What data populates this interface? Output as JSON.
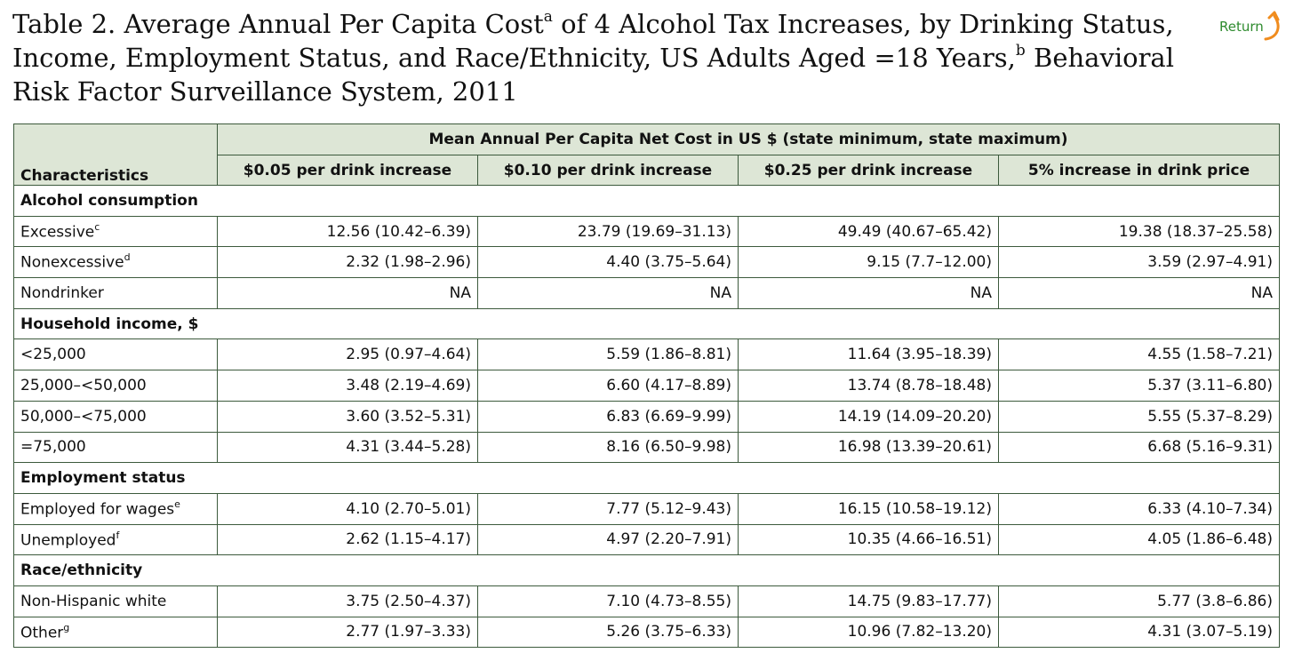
{
  "title": {
    "text_1": "Table 2. Average Annual Per Capita Cost",
    "sup_1": "a",
    "text_2": " of 4 Alcohol Tax Increases, by Drinking Status, Income, Employment Status, and Race/Ethnicity, US Adults Aged =18 Years,",
    "sup_2": "b",
    "text_3": " Behavioral Risk Factor Surveillance System, 2011"
  },
  "return_link": {
    "label": "Return",
    "icon": "curved-arrow-icon",
    "color": "#f08c1e"
  },
  "colors": {
    "header_bg": "#dde6d6",
    "border": "#3c5a3c",
    "return_text": "#2e8b2e"
  },
  "table": {
    "characteristics_header": "Characteristics",
    "group_header": "Mean Annual Per Capita Net Cost in US $ (state minimum, state maximum)",
    "columns": [
      "$0.05 per drink increase",
      "$0.10 per drink increase",
      "$0.25 per drink increase",
      "5% increase in drink price"
    ],
    "sections": [
      {
        "label": "Alcohol consumption",
        "rows": [
          {
            "label": "Excessive",
            "sup": "c",
            "values": [
              "12.56 (10.42–6.39)",
              "23.79 (19.69–31.13)",
              "49.49 (40.67–65.42)",
              "19.38 (18.37–25.58)"
            ]
          },
          {
            "label": "Nonexcessive",
            "sup": "d",
            "values": [
              "2.32 (1.98–2.96)",
              "4.40 (3.75–5.64)",
              "9.15 (7.7–12.00)",
              "3.59 (2.97–4.91)"
            ]
          },
          {
            "label": "Nondrinker",
            "sup": "",
            "values": [
              "NA",
              "NA",
              "NA",
              "NA"
            ]
          }
        ]
      },
      {
        "label": "Household income, $",
        "rows": [
          {
            "label": "<25,000",
            "sup": "",
            "values": [
              "2.95 (0.97–4.64)",
              "5.59 (1.86–8.81)",
              "11.64 (3.95–18.39)",
              "4.55 (1.58–7.21)"
            ]
          },
          {
            "label": "25,000–<50,000",
            "sup": "",
            "values": [
              "3.48 (2.19–4.69)",
              "6.60 (4.17–8.89)",
              "13.74 (8.78–18.48)",
              "5.37 (3.11–6.80)"
            ]
          },
          {
            "label": "50,000–<75,000",
            "sup": "",
            "values": [
              "3.60 (3.52–5.31)",
              "6.83 (6.69–9.99)",
              "14.19 (14.09–20.20)",
              "5.55 (5.37–8.29)"
            ]
          },
          {
            "label": "=75,000",
            "sup": "",
            "values": [
              "4.31 (3.44–5.28)",
              "8.16 (6.50–9.98)",
              "16.98 (13.39–20.61)",
              "6.68 (5.16–9.31)"
            ]
          }
        ]
      },
      {
        "label": "Employment status",
        "rows": [
          {
            "label": "Employed for wages",
            "sup": "e",
            "values": [
              "4.10 (2.70–5.01)",
              "7.77 (5.12–9.43)",
              "16.15 (10.58–19.12)",
              "6.33 (4.10–7.34)"
            ]
          },
          {
            "label": "Unemployed",
            "sup": "f",
            "values": [
              "2.62 (1.15–4.17)",
              "4.97 (2.20–7.91)",
              "10.35 (4.66–16.51)",
              "4.05 (1.86–6.48)"
            ]
          }
        ]
      },
      {
        "label": "Race/ethnicity",
        "rows": [
          {
            "label": "Non-Hispanic white",
            "sup": "",
            "values": [
              "3.75 (2.50–4.37)",
              "7.10 (4.73–8.55)",
              "14.75 (9.83–17.77)",
              "5.77 (3.8–6.86)"
            ]
          },
          {
            "label": "Other",
            "sup": "g",
            "values": [
              "2.77 (1.97–3.33)",
              "5.26 (3.75–6.33)",
              "10.96 (7.82–13.20)",
              "4.31 (3.07–5.19)"
            ]
          }
        ]
      }
    ]
  }
}
